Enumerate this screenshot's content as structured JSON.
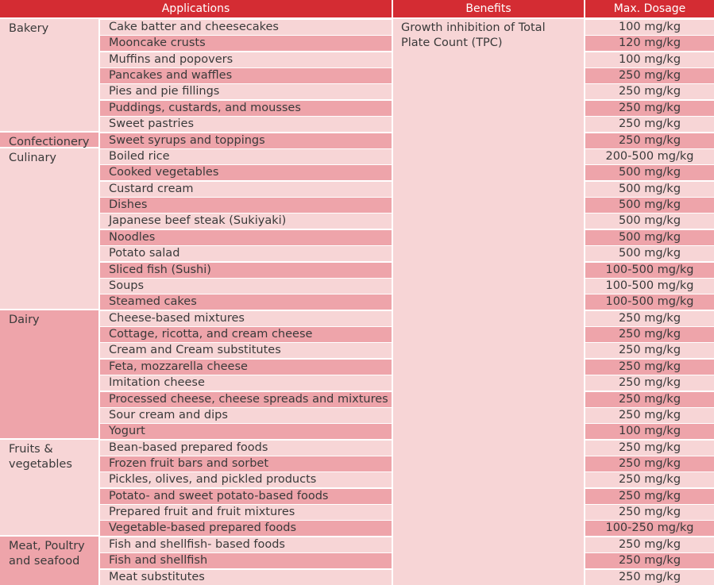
{
  "headers": {
    "applications": "Applications",
    "benefits": "Benefits",
    "max_dosage": "Max. Dosage"
  },
  "benefit_text": "Growth inhibition of Total Plate Count (TPC)",
  "categories": [
    {
      "name": "Bakery"
    },
    {
      "name": "Confectionery"
    },
    {
      "name": "Culinary"
    },
    {
      "name": "Dairy"
    },
    {
      "name": "Fruits & vegetables"
    },
    {
      "name": "Meat, Poultry and seafood"
    }
  ],
  "rows": [
    {
      "application": "Cake batter and cheesecakes",
      "dosage": "100 mg/kg"
    },
    {
      "application": "Mooncake crusts",
      "dosage": "120 mg/kg"
    },
    {
      "application": "Muffins and popovers",
      "dosage": "100 mg/kg"
    },
    {
      "application": "Pancakes and waffles",
      "dosage": "250 mg/kg"
    },
    {
      "application": "Pies and pie fillings",
      "dosage": "250 mg/kg"
    },
    {
      "application": "Puddings, custards, and mousses",
      "dosage": "250 mg/kg"
    },
    {
      "application": "Sweet pastries",
      "dosage": "250 mg/kg"
    },
    {
      "application": "Sweet syrups and toppings",
      "dosage": "250 mg/kg"
    },
    {
      "application": "Boiled rice",
      "dosage": "200-500 mg/kg"
    },
    {
      "application": "Cooked vegetables",
      "dosage": "500 mg/kg"
    },
    {
      "application": "Custard cream",
      "dosage": "500 mg/kg"
    },
    {
      "application": "Dishes",
      "dosage": "500 mg/kg"
    },
    {
      "application": "Japanese beef steak (Sukiyaki)",
      "dosage": "500 mg/kg"
    },
    {
      "application": "Noodles",
      "dosage": "500 mg/kg"
    },
    {
      "application": "Potato salad",
      "dosage": "500 mg/kg"
    },
    {
      "application": "Sliced fish (Sushi)",
      "dosage": "100-500 mg/kg"
    },
    {
      "application": "Soups",
      "dosage": "100-500 mg/kg"
    },
    {
      "application": "Steamed cakes",
      "dosage": "100-500 mg/kg"
    },
    {
      "application": "Cheese-based mixtures",
      "dosage": "250 mg/kg"
    },
    {
      "application": "Cottage, ricotta, and cream cheese",
      "dosage": "250 mg/kg"
    },
    {
      "application": "Cream and Cream substitutes",
      "dosage": "250 mg/kg"
    },
    {
      "application": "Feta, mozzarella cheese",
      "dosage": "250 mg/kg"
    },
    {
      "application": "Imitation cheese",
      "dosage": "250 mg/kg"
    },
    {
      "application": "Processed cheese, cheese spreads and mixtures",
      "dosage": "250 mg/kg"
    },
    {
      "application": "Sour cream and dips",
      "dosage": "250 mg/kg"
    },
    {
      "application": "Yogurt",
      "dosage": "100 mg/kg"
    },
    {
      "application": "Bean-based prepared foods",
      "dosage": "250 mg/kg"
    },
    {
      "application": "Frozen fruit bars and sorbet",
      "dosage": "250 mg/kg"
    },
    {
      "application": "Pickles, olives, and pickled products",
      "dosage": "250 mg/kg"
    },
    {
      "application": "Potato- and sweet potato-based foods",
      "dosage": "250 mg/kg"
    },
    {
      "application": "Prepared fruit and fruit mixtures",
      "dosage": "250 mg/kg"
    },
    {
      "application": "Vegetable-based prepared foods",
      "dosage": "100-250 mg/kg"
    },
    {
      "application": "Fish and shellfish- based foods",
      "dosage": "250 mg/kg"
    },
    {
      "application": "Fish and shellfish",
      "dosage": "250 mg/kg"
    },
    {
      "application": "Meat substitutes",
      "dosage": "250 mg/kg"
    }
  ]
}
